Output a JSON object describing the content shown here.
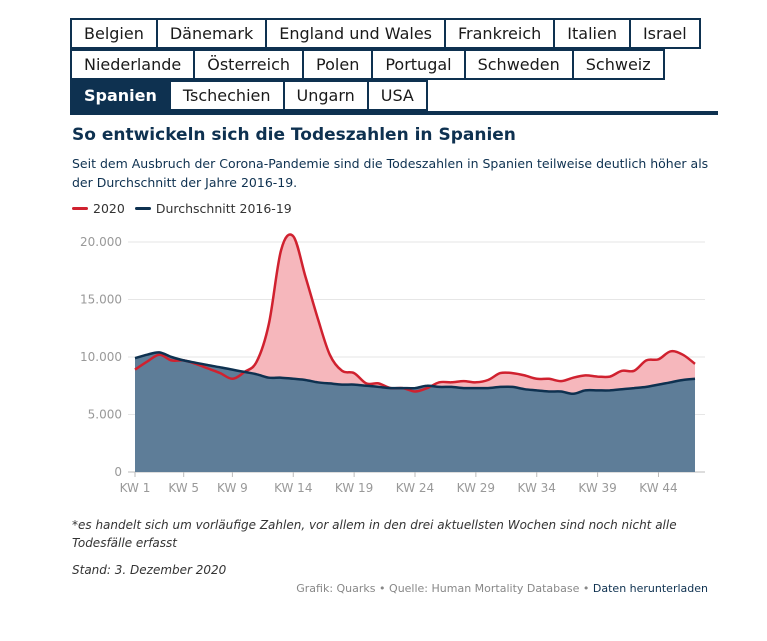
{
  "tabs": {
    "rows": [
      [
        "Belgien",
        "Dänemark",
        "England und Wales",
        "Frankreich",
        "Italien",
        "Israel"
      ],
      [
        "Niederlande",
        "Österreich",
        "Polen",
        "Portugal",
        "Schweden",
        "Schweiz"
      ],
      [
        "Spanien",
        "Tschechien",
        "Ungarn",
        "USA"
      ]
    ],
    "active": "Spanien"
  },
  "colors": {
    "accent": "#0e3150",
    "series_2020": "#d0212f",
    "fill_2020": "#f6b7bc",
    "series_avg": "#0e3150",
    "fill_avg": "#5e7d98"
  },
  "footnote": "*es handelt sich um vorläufige Zahlen, vor allem in den drei aktuellsten Wochen sind noch nicht alle Todesfälle erfasst",
  "stand": "Stand: 3. Dezember 2020",
  "credits": {
    "grafik": "Grafik: Quarks",
    "quelle": "Quelle: Human Mortality Database",
    "download": "Daten herunterladen"
  },
  "chart_data": {
    "type": "area",
    "title": "So entwickeln sich die Todeszahlen in Spanien",
    "subtitle": "Seit dem Ausbruch der Corona-Pandemie sind die Todeszahlen in Spanien teilweise deutlich höher als der Durchschnitt der Jahre 2016-19.",
    "xlabel": "",
    "ylabel": "",
    "x": [
      1,
      2,
      3,
      4,
      5,
      6,
      7,
      8,
      9,
      10,
      11,
      12,
      13,
      14,
      15,
      16,
      17,
      18,
      19,
      20,
      21,
      22,
      23,
      24,
      25,
      26,
      27,
      28,
      29,
      30,
      31,
      32,
      33,
      34,
      35,
      36,
      37,
      38,
      39,
      40,
      41,
      42,
      43,
      44,
      45,
      46,
      47
    ],
    "x_ticks": [
      1,
      5,
      9,
      14,
      19,
      24,
      29,
      34,
      39,
      44
    ],
    "x_tick_labels": [
      "KW 1",
      "KW 5",
      "KW 9",
      "KW 14",
      "KW 19",
      "KW 24",
      "KW 29",
      "KW 34",
      "KW 39",
      "KW 44"
    ],
    "ylim": [
      0,
      20000
    ],
    "y_ticks": [
      0,
      5000,
      10000,
      15000,
      20000
    ],
    "y_tick_labels": [
      "0",
      "5.000",
      "10.000",
      "15.000",
      "20.000"
    ],
    "grid": true,
    "legend_position": "top-left",
    "series": [
      {
        "name": "2020",
        "values": [
          8900,
          9600,
          10200,
          9700,
          9700,
          9400,
          9000,
          8600,
          8100,
          8700,
          9600,
          12900,
          19300,
          20500,
          17000,
          13400,
          10200,
          8800,
          8600,
          7700,
          7700,
          7300,
          7300,
          7000,
          7300,
          7800,
          7800,
          7900,
          7800,
          8000,
          8600,
          8600,
          8400,
          8100,
          8100,
          7900,
          8200,
          8400,
          8300,
          8300,
          8800,
          8800,
          9700,
          9800,
          10500,
          10200,
          9400
        ]
      },
      {
        "name": "Durchschnitt 2016-19",
        "values": [
          9900,
          10200,
          10400,
          10000,
          9700,
          9500,
          9300,
          9100,
          8900,
          8700,
          8500,
          8200,
          8200,
          8100,
          8000,
          7800,
          7700,
          7600,
          7600,
          7500,
          7400,
          7300,
          7300,
          7300,
          7500,
          7400,
          7400,
          7300,
          7300,
          7300,
          7400,
          7400,
          7200,
          7100,
          7000,
          7000,
          6800,
          7100,
          7100,
          7100,
          7200,
          7300,
          7400,
          7600,
          7800,
          8000,
          8100
        ]
      }
    ]
  }
}
